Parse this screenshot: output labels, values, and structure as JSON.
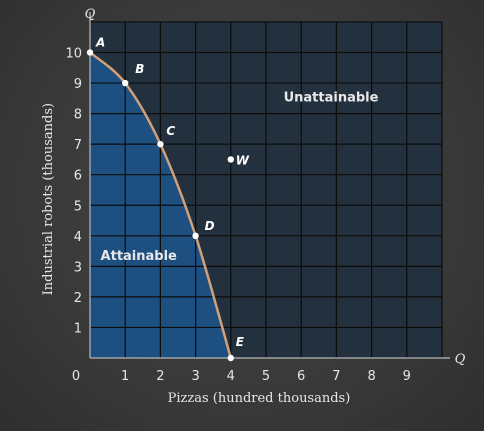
{
  "chart_data": {
    "type": "line",
    "title": "",
    "xlabel": "Pizzas (hundred thousands)",
    "ylabel": "Industrial robots (thousands)",
    "x_end_label": "Q",
    "y_end_label": "Q",
    "xlim": [
      0,
      10
    ],
    "ylim": [
      0,
      11
    ],
    "x_ticks": [
      "0",
      "1",
      "2",
      "3",
      "4",
      "5",
      "6",
      "7",
      "8",
      "9"
    ],
    "y_ticks": [
      "1",
      "2",
      "3",
      "4",
      "5",
      "6",
      "7",
      "8",
      "9",
      "10"
    ],
    "grid": true,
    "series": [
      {
        "points": [
          {
            "label": "A",
            "x": 0,
            "y": 10
          },
          {
            "label": "B",
            "x": 1,
            "y": 9
          },
          {
            "label": "C",
            "x": 2,
            "y": 7
          },
          {
            "label": "D",
            "x": 3,
            "y": 4
          },
          {
            "label": "E",
            "x": 4,
            "y": 0
          }
        ]
      }
    ],
    "extra_point": {
      "label": "W",
      "x": 4,
      "y": 6.5
    },
    "regions": {
      "inside": "Attainable",
      "outside": "Unattainable"
    },
    "colors": {
      "background": "#3a3a3a",
      "plot_area": "#23303d",
      "attainable_fill": "#1d4f80",
      "grid": "#0c0c0c",
      "curve": "#d2a078",
      "points": "#ffffff"
    }
  }
}
